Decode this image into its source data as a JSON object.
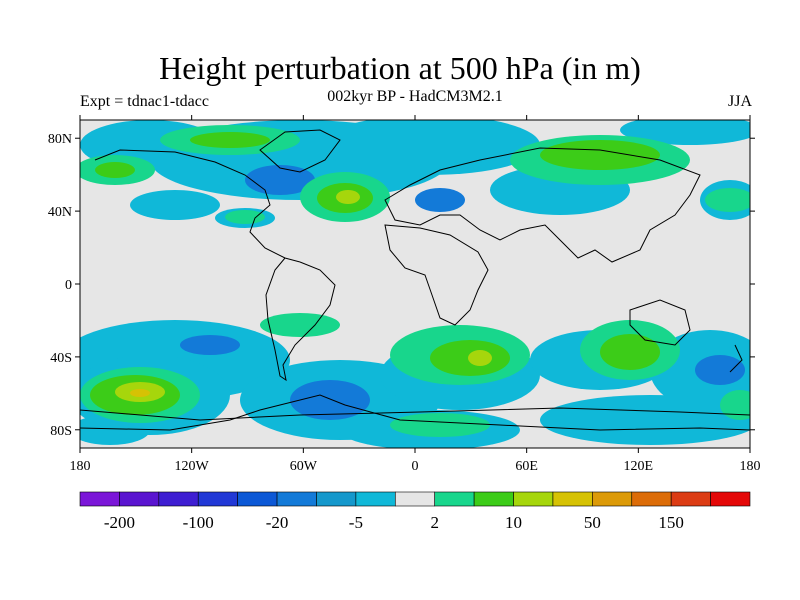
{
  "header": {
    "title": "Height perturbation at 500 hPa (in m)",
    "subtitle": "002kyr BP - HadCM3M2.1",
    "left_label": "Expt = tdnac1-tdacc",
    "right_label": "JJA"
  },
  "axes": {
    "lat_ticks": [
      {
        "value": 80,
        "label": "80N"
      },
      {
        "value": 40,
        "label": "40N"
      },
      {
        "value": 0,
        "label": "0"
      },
      {
        "value": -40,
        "label": "40S"
      },
      {
        "value": -80,
        "label": "80S"
      }
    ],
    "lon_ticks": [
      {
        "value": -180,
        "label": "180"
      },
      {
        "value": -120,
        "label": "120W"
      },
      {
        "value": -60,
        "label": "60W"
      },
      {
        "value": 0,
        "label": "0"
      },
      {
        "value": 60,
        "label": "60E"
      },
      {
        "value": 120,
        "label": "120E"
      },
      {
        "value": 180,
        "label": "180"
      }
    ],
    "lon_range": [
      -180,
      180
    ],
    "lat_range": [
      -90,
      90
    ]
  },
  "colorbar": {
    "colors": [
      "#7b16d8",
      "#5a14d0",
      "#3e1ed2",
      "#2138d6",
      "#0c58d6",
      "#137ad8",
      "#1598cc",
      "#10b8d8",
      "#e6e6e6",
      "#18d68c",
      "#3ccc18",
      "#a6d60c",
      "#d6c204",
      "#dc9a08",
      "#dc6c08",
      "#dc3c14",
      "#e40808"
    ],
    "labels": [
      "-200",
      "-100",
      "-20",
      "-5",
      "2",
      "10",
      "50",
      "150"
    ]
  },
  "background_color": "#e6e6e6"
}
